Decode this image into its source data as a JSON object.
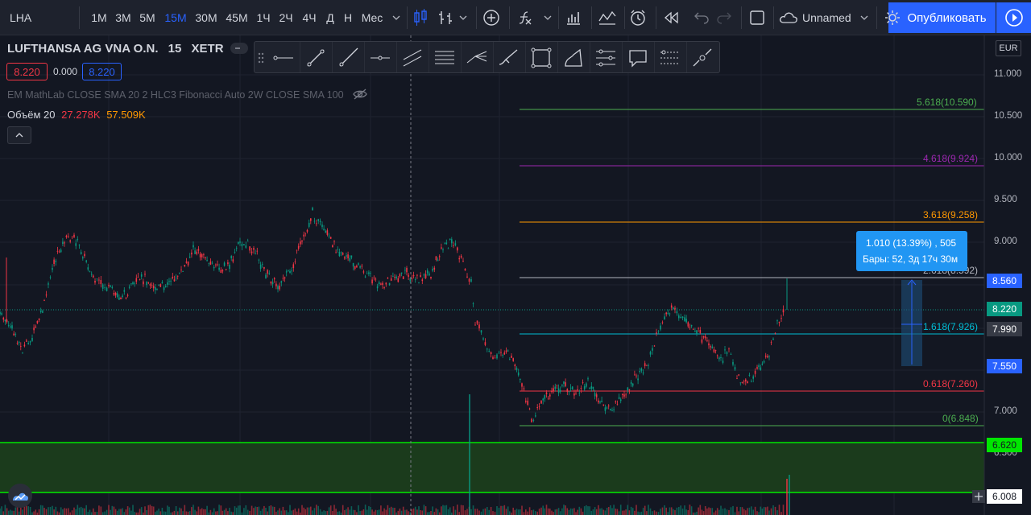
{
  "toolbar": {
    "symbol": "LHA",
    "intervals": [
      "1М",
      "3М",
      "5М",
      "15М",
      "30М",
      "45М",
      "1Ч",
      "2Ч",
      "4Ч",
      "Д",
      "Н",
      "Мес"
    ],
    "active_interval": "15М",
    "layout_name": "Unnamed",
    "publish_label": "Опубликовать"
  },
  "legend": {
    "title": "LUFTHANSA AG VNA O.N.",
    "interval": "15",
    "exchange": "XETR",
    "price_box": "8.220",
    "change": "0.000",
    "price_box2": "8.220",
    "indicators": "EM MathLab CLOSE SMA 20 2 HLC3 Fibonacci Auto 2W CLOSE SMA 100",
    "volume_label": "Объём 20",
    "volume_val1": "27.278K",
    "volume_val2": "57.509K"
  },
  "currency": "EUR",
  "axis_ticks": [
    "11.000",
    "10.500",
    "10.000",
    "9.500",
    "9.000",
    "8.500",
    "8.000",
    "7.500",
    "7.000",
    "6.500"
  ],
  "fib_levels": [
    {
      "label": "5.618(10.590)",
      "color": "#4caf50"
    },
    {
      "label": "4.618(9.924)",
      "color": "#9c27b0"
    },
    {
      "label": "3.618(9.258)",
      "color": "#ff9800"
    },
    {
      "label": "2.618(8.592)",
      "color": "#b2b5be"
    },
    {
      "label": "1.618(7.926)",
      "color": "#00bcd4"
    },
    {
      "label": "0.618(7.260)",
      "color": "#f23645"
    },
    {
      "label": "0(6.848)",
      "color": "#4caf50"
    }
  ],
  "price_labels": [
    {
      "value": "8.560",
      "bg": "#2962ff",
      "fg": "#ffffff"
    },
    {
      "value": "8.220",
      "bg": "#089981",
      "fg": "#ffffff"
    },
    {
      "value": "7.990",
      "bg": "#363a45",
      "fg": "#ffffff"
    },
    {
      "value": "7.550",
      "bg": "#2962ff",
      "fg": "#ffffff"
    },
    {
      "value": "6.620",
      "bg": "#00e600",
      "fg": "#131722"
    },
    {
      "value": "6.008",
      "bg": "#ffffff",
      "fg": "#131722"
    }
  ],
  "measure_tooltip": {
    "line1": "1.010 (13.39%) , 505",
    "line2": "Бары: 52, 3д 17ч 30м"
  },
  "drawing_tools": [
    "horizontal-ray-icon",
    "trend-line-icon",
    "ray-icon",
    "horizontal-line-icon",
    "parallel-channel-icon",
    "fib-retracement-icon",
    "pitchfork-icon",
    "brush-icon",
    "rectangle-icon",
    "path-icon",
    "fib-levels-icon",
    "text-note-icon",
    "regression-icon",
    "forecast-icon"
  ],
  "colors": {
    "up": "#089981",
    "down": "#f23645",
    "accent": "#2962ff"
  }
}
